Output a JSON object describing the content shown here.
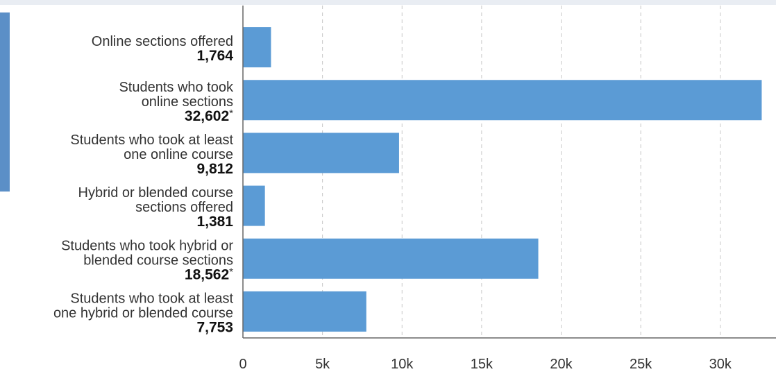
{
  "chart_data": {
    "type": "bar",
    "orientation": "horizontal",
    "categories": [
      {
        "label_lines": [
          "Online sections offered"
        ],
        "value_text": "1,764",
        "note": ""
      },
      {
        "label_lines": [
          "Students who took",
          "online sections"
        ],
        "value_text": "32,602",
        "note": "*"
      },
      {
        "label_lines": [
          "Students who took at least",
          "one online course"
        ],
        "value_text": "9,812",
        "note": ""
      },
      {
        "label_lines": [
          "Hybrid or blended course",
          "sections offered"
        ],
        "value_text": "1,381",
        "note": ""
      },
      {
        "label_lines": [
          "Students who took hybrid or",
          "blended course sections"
        ],
        "value_text": "18,562",
        "note": "*"
      },
      {
        "label_lines": [
          "Students who took at least",
          "one hybrid or blended course"
        ],
        "value_text": "7,753",
        "note": ""
      }
    ],
    "values": [
      1764,
      32602,
      9812,
      1381,
      18562,
      7753
    ],
    "xlim": [
      0,
      33500
    ],
    "x_ticks": [
      0,
      5000,
      10000,
      15000,
      20000,
      25000,
      30000
    ],
    "x_tick_labels": [
      "0",
      "5k",
      "10k",
      "15k",
      "20k",
      "25k",
      "30k"
    ],
    "grid": "vertical dashed",
    "bar_color": "#5b9bd5",
    "accent_color": "#5b8fc7",
    "title": "",
    "xlabel": "",
    "ylabel": ""
  }
}
